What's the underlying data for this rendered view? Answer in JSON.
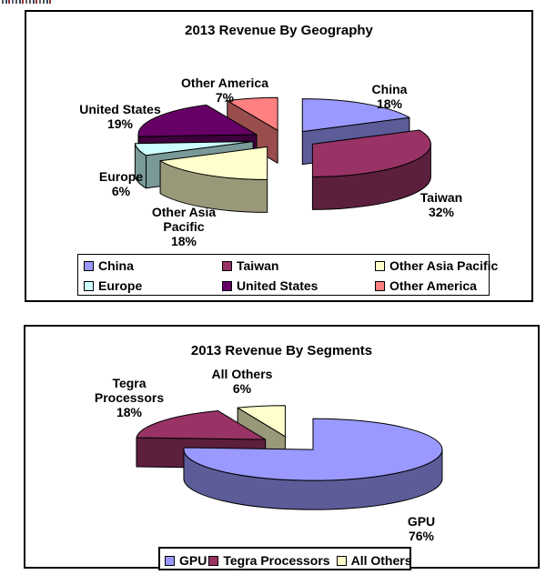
{
  "charts": [
    {
      "title": "2013 Revenue By Geography",
      "chart_data": {
        "type": "pie",
        "style": "3d-exploded-pie",
        "start_angle_deg": 0,
        "direction": "clockwise",
        "grid": false,
        "legend_position": "bottom",
        "categories": [
          "China",
          "Taiwan",
          "Other Asia Pacific",
          "Europe",
          "United States",
          "Other America"
        ],
        "values": [
          18,
          32,
          18,
          6,
          19,
          7
        ],
        "unit": "%",
        "colors": [
          "#9999FF",
          "#993366",
          "#FFFFCC",
          "#CCFFFF",
          "#660066",
          "#FF8080"
        ],
        "data_labels": [
          "China 18%",
          "Taiwan 32%",
          "Other Asia Pacific 18%",
          "Europe 6%",
          "United States 19%",
          "Other America 7%"
        ]
      }
    },
    {
      "title": "2013 Revenue By Segments",
      "chart_data": {
        "type": "pie",
        "style": "3d-exploded-pie",
        "start_angle_deg": 0,
        "direction": "clockwise",
        "grid": false,
        "legend_position": "bottom",
        "categories": [
          "GPU",
          "Tegra Processors",
          "All Others"
        ],
        "values": [
          76,
          18,
          6
        ],
        "unit": "%",
        "colors": [
          "#9999FF",
          "#993366",
          "#FFFFCC"
        ],
        "data_labels": [
          "GPU 76%",
          "Tegra Processors 18%",
          "All Others 6%"
        ]
      }
    }
  ]
}
